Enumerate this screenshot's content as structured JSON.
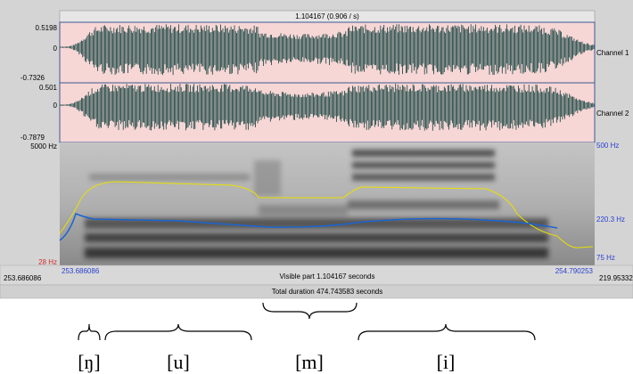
{
  "header": {
    "title": "1.104167 (0.906 / s)"
  },
  "channels": [
    {
      "label": "Channel 1",
      "max": "0.5198",
      "zero": "0",
      "min": "-0.7326"
    },
    {
      "label": "Channel 2",
      "max": "0.501",
      "zero": "0",
      "min": "-0.7879"
    }
  ],
  "spectrogram": {
    "top": "5000 Hz",
    "bottom": "28 Hz",
    "right_labels": [
      "500 Hz",
      "220.3 Hz",
      "75 Hz"
    ]
  },
  "footer": {
    "window_start": "253.686086",
    "visible_start": "253.686086",
    "visible_part": "Visible part 1.104167 seconds",
    "visible_end": "254.790253",
    "window_end": "219.95332",
    "total": "Total duration 474.743583 seconds"
  },
  "segments": [
    "[ŋ]",
    "[u]",
    "[m]",
    "[i]"
  ]
}
